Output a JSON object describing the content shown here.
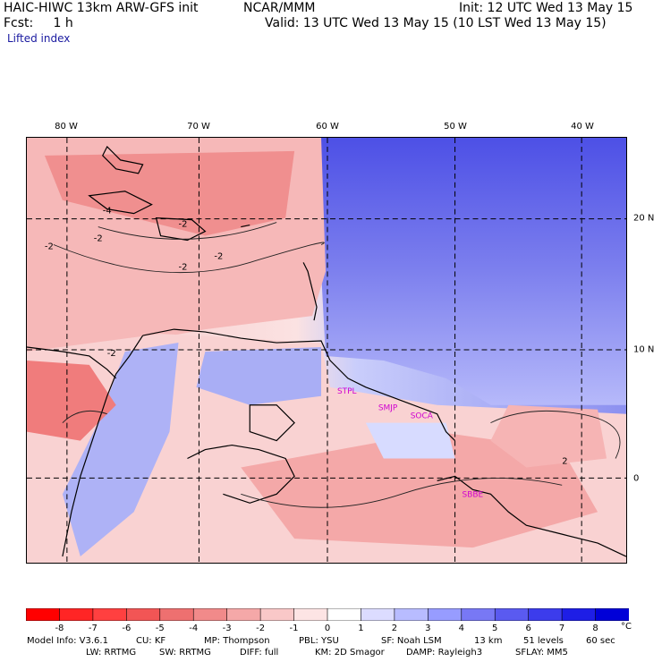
{
  "header": {
    "model": "HAIC-HIWC 13km ARW-GFS init",
    "org": "NCAR/MMM",
    "init": "Init: 12 UTC Wed 13 May 15",
    "fcst": "Fcst:     1 h",
    "valid": "Valid: 13 UTC Wed 13 May 15 (10 LST Wed 13 May 15)",
    "field": "Lifted index"
  },
  "map": {
    "lon_labels": [
      "80 W",
      "70 W",
      "60 W",
      "50 W",
      "40 W"
    ],
    "lat_labels": [
      "20 N",
      "10 N",
      "0"
    ],
    "contour_labels": [
      "-4",
      "-2",
      "-2",
      "-2",
      "-2",
      "-2",
      "-2",
      "2"
    ],
    "station_labels": [
      "STPL",
      "SMJP",
      "SOCA",
      "SBBE"
    ],
    "colors": {
      "neg_strong": "#e52020",
      "neg_weak": "#fbd6d6",
      "neutral": "#fdf2f2",
      "pos_weak": "#d7dcff",
      "pos_strong": "#2a2ae0",
      "station": "#d000d0"
    }
  },
  "colorbar": {
    "labels": [
      "-8",
      "-7",
      "-6",
      "-5",
      "-4",
      "-3",
      "-2",
      "-1",
      "0",
      "1",
      "2",
      "3",
      "4",
      "5",
      "6",
      "7",
      "8"
    ],
    "unit": "°C",
    "colors": [
      "#ff0000",
      "#ff2525",
      "#ff4040",
      "#f25555",
      "#ee7070",
      "#f18a8a",
      "#f5a8a8",
      "#f9c8c8",
      "#fde4e4",
      "#ffffff",
      "#dcdcff",
      "#b8bcff",
      "#979cff",
      "#7878f5",
      "#5a5af0",
      "#3c3cec",
      "#1e1ee6",
      "#0000d8"
    ]
  },
  "footer": {
    "line1": [
      "Model Info: V3.6.1",
      "CU: KF",
      "MP: Thompson",
      "PBL: YSU",
      "SF: Noah LSM",
      "13 km",
      "51 levels",
      "60 sec"
    ],
    "line2": [
      "LW: RRTMG",
      "SW: RRTMG",
      "DIFF: full",
      "KM: 2D Smagor",
      "DAMP: Rayleigh3",
      "SFLAY: MM5"
    ]
  }
}
